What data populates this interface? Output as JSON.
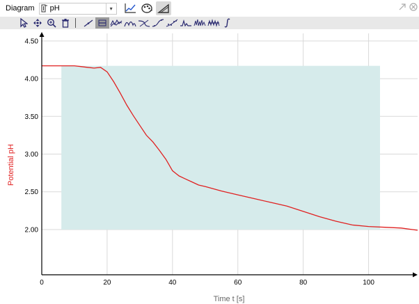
{
  "toolbar": {
    "diagram_label": "Diagram",
    "sensor_value": "pH",
    "icons": [
      "line-chart-icon",
      "palette-icon",
      "ruler-icon"
    ],
    "corner_icons": [
      "popout-icon",
      "close-icon"
    ]
  },
  "analysis_toolbar": {
    "icons": [
      "pointer-icon",
      "pan-icon",
      "zoom-icon",
      "trash-icon",
      "tangent-icon",
      "range-icon",
      "smooth-icon",
      "peak-icon",
      "fit-icon",
      "curve-icon",
      "scatter-icon",
      "spectrum-icon",
      "noise-icon",
      "average-icon",
      "integral-icon"
    ],
    "active": "range-icon"
  },
  "colors": {
    "series": "#e02020",
    "ylabel": "#e02020",
    "highlight": "#d6ebeb",
    "grid": "#d9d9d9",
    "toolbar_bg": "#e8e8e8"
  },
  "chart_data": {
    "type": "line",
    "xlabel": "Time t [s]",
    "ylabel": "Potential pH",
    "xlim": [
      0,
      115
    ],
    "ylim": [
      1.4,
      4.6
    ],
    "xticks": [
      0,
      20,
      40,
      60,
      80,
      100
    ],
    "yticks": [
      2.0,
      2.5,
      3.0,
      3.5,
      4.0,
      4.5
    ],
    "ytick_labels": [
      "2.00",
      "2.50",
      "3.00",
      "3.50",
      "4.00",
      "4.50"
    ],
    "grid": true,
    "highlight_region": {
      "x": [
        6,
        103.5
      ],
      "y": [
        2.0,
        4.17
      ]
    },
    "series": [
      {
        "x": [
          0,
          5,
          10,
          12,
          14,
          16,
          18,
          20,
          22,
          24,
          26,
          28,
          30,
          32,
          34,
          36,
          38,
          40,
          42,
          44,
          46,
          48,
          50,
          55,
          60,
          65,
          70,
          75,
          80,
          85,
          90,
          95,
          100,
          105,
          110,
          115
        ],
        "y": [
          4.17,
          4.17,
          4.17,
          4.16,
          4.15,
          4.14,
          4.15,
          4.09,
          3.96,
          3.81,
          3.65,
          3.51,
          3.38,
          3.25,
          3.16,
          3.05,
          2.93,
          2.78,
          2.71,
          2.67,
          2.63,
          2.59,
          2.57,
          2.51,
          2.46,
          2.41,
          2.36,
          2.31,
          2.24,
          2.17,
          2.11,
          2.06,
          2.04,
          2.03,
          2.02,
          1.99
        ]
      }
    ]
  }
}
